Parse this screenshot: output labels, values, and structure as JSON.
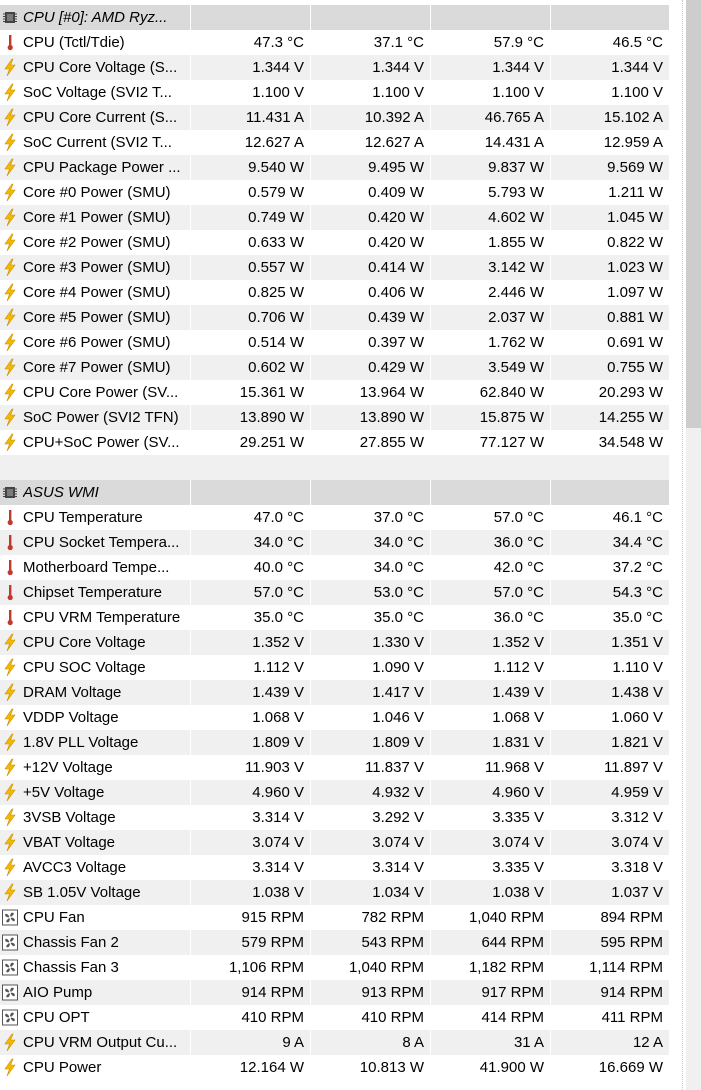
{
  "groups": [
    {
      "title": "CPU [#0]: AMD Ryz...",
      "rows": [
        {
          "icon": "thermometer-icon",
          "label": "CPU (Tctl/Tdie)",
          "v": [
            "47.3 °C",
            "37.1 °C",
            "57.9 °C",
            "46.5 °C"
          ]
        },
        {
          "icon": "lightning-icon",
          "label": "CPU Core Voltage (S...",
          "v": [
            "1.344 V",
            "1.344 V",
            "1.344 V",
            "1.344 V"
          ]
        },
        {
          "icon": "lightning-icon",
          "label": "SoC Voltage (SVI2 T...",
          "v": [
            "1.100 V",
            "1.100 V",
            "1.100 V",
            "1.100 V"
          ]
        },
        {
          "icon": "lightning-icon",
          "label": "CPU Core Current (S...",
          "v": [
            "11.431 A",
            "10.392 A",
            "46.765 A",
            "15.102 A"
          ]
        },
        {
          "icon": "lightning-icon",
          "label": "SoC Current (SVI2 T...",
          "v": [
            "12.627 A",
            "12.627 A",
            "14.431 A",
            "12.959 A"
          ]
        },
        {
          "icon": "lightning-icon",
          "label": "CPU Package Power ...",
          "v": [
            "9.540 W",
            "9.495 W",
            "9.837 W",
            "9.569 W"
          ]
        },
        {
          "icon": "lightning-icon",
          "label": "Core #0 Power (SMU)",
          "v": [
            "0.579 W",
            "0.409 W",
            "5.793 W",
            "1.211 W"
          ]
        },
        {
          "icon": "lightning-icon",
          "label": "Core #1 Power (SMU)",
          "v": [
            "0.749 W",
            "0.420 W",
            "4.602 W",
            "1.045 W"
          ]
        },
        {
          "icon": "lightning-icon",
          "label": "Core #2 Power (SMU)",
          "v": [
            "0.633 W",
            "0.420 W",
            "1.855 W",
            "0.822 W"
          ]
        },
        {
          "icon": "lightning-icon",
          "label": "Core #3 Power (SMU)",
          "v": [
            "0.557 W",
            "0.414 W",
            "3.142 W",
            "1.023 W"
          ]
        },
        {
          "icon": "lightning-icon",
          "label": "Core #4 Power (SMU)",
          "v": [
            "0.825 W",
            "0.406 W",
            "2.446 W",
            "1.097 W"
          ]
        },
        {
          "icon": "lightning-icon",
          "label": "Core #5 Power (SMU)",
          "v": [
            "0.706 W",
            "0.439 W",
            "2.037 W",
            "0.881 W"
          ]
        },
        {
          "icon": "lightning-icon",
          "label": "Core #6 Power (SMU)",
          "v": [
            "0.514 W",
            "0.397 W",
            "1.762 W",
            "0.691 W"
          ]
        },
        {
          "icon": "lightning-icon",
          "label": "Core #7 Power (SMU)",
          "v": [
            "0.602 W",
            "0.429 W",
            "3.549 W",
            "0.755 W"
          ]
        },
        {
          "icon": "lightning-icon",
          "label": "CPU Core Power (SV...",
          "v": [
            "15.361 W",
            "13.964 W",
            "62.840 W",
            "20.293 W"
          ]
        },
        {
          "icon": "lightning-icon",
          "label": "SoC Power (SVI2 TFN)",
          "v": [
            "13.890 W",
            "13.890 W",
            "15.875 W",
            "14.255 W"
          ]
        },
        {
          "icon": "lightning-icon",
          "label": "CPU+SoC Power (SV...",
          "v": [
            "29.251 W",
            "27.855 W",
            "77.127 W",
            "34.548 W"
          ]
        }
      ]
    },
    {
      "title": "ASUS WMI",
      "rows": [
        {
          "icon": "thermometer-icon",
          "label": "CPU Temperature",
          "v": [
            "47.0 °C",
            "37.0 °C",
            "57.0 °C",
            "46.1 °C"
          ]
        },
        {
          "icon": "thermometer-icon",
          "label": "CPU Socket Tempera...",
          "v": [
            "34.0 °C",
            "34.0 °C",
            "36.0 °C",
            "34.4 °C"
          ]
        },
        {
          "icon": "thermometer-icon",
          "label": "Motherboard Tempe...",
          "v": [
            "40.0 °C",
            "34.0 °C",
            "42.0 °C",
            "37.2 °C"
          ]
        },
        {
          "icon": "thermometer-icon",
          "label": "Chipset Temperature",
          "v": [
            "57.0 °C",
            "53.0 °C",
            "57.0 °C",
            "54.3 °C"
          ]
        },
        {
          "icon": "thermometer-icon",
          "label": "CPU VRM Temperature",
          "v": [
            "35.0 °C",
            "35.0 °C",
            "36.0 °C",
            "35.0 °C"
          ]
        },
        {
          "icon": "lightning-icon",
          "label": "CPU Core Voltage",
          "v": [
            "1.352 V",
            "1.330 V",
            "1.352 V",
            "1.351 V"
          ]
        },
        {
          "icon": "lightning-icon",
          "label": "CPU SOC Voltage",
          "v": [
            "1.112 V",
            "1.090 V",
            "1.112 V",
            "1.110 V"
          ]
        },
        {
          "icon": "lightning-icon",
          "label": "DRAM Voltage",
          "v": [
            "1.439 V",
            "1.417 V",
            "1.439 V",
            "1.438 V"
          ]
        },
        {
          "icon": "lightning-icon",
          "label": "VDDP Voltage",
          "v": [
            "1.068 V",
            "1.046 V",
            "1.068 V",
            "1.060 V"
          ]
        },
        {
          "icon": "lightning-icon",
          "label": "1.8V PLL Voltage",
          "v": [
            "1.809 V",
            "1.809 V",
            "1.831 V",
            "1.821 V"
          ]
        },
        {
          "icon": "lightning-icon",
          "label": "+12V Voltage",
          "v": [
            "11.903 V",
            "11.837 V",
            "11.968 V",
            "11.897 V"
          ]
        },
        {
          "icon": "lightning-icon",
          "label": "+5V Voltage",
          "v": [
            "4.960 V",
            "4.932 V",
            "4.960 V",
            "4.959 V"
          ]
        },
        {
          "icon": "lightning-icon",
          "label": "3VSB Voltage",
          "v": [
            "3.314 V",
            "3.292 V",
            "3.335 V",
            "3.312 V"
          ]
        },
        {
          "icon": "lightning-icon",
          "label": "VBAT Voltage",
          "v": [
            "3.074 V",
            "3.074 V",
            "3.074 V",
            "3.074 V"
          ]
        },
        {
          "icon": "lightning-icon",
          "label": "AVCC3 Voltage",
          "v": [
            "3.314 V",
            "3.314 V",
            "3.335 V",
            "3.318 V"
          ]
        },
        {
          "icon": "lightning-icon",
          "label": "SB 1.05V Voltage",
          "v": [
            "1.038 V",
            "1.034 V",
            "1.038 V",
            "1.037 V"
          ]
        },
        {
          "icon": "fan-icon",
          "label": "CPU Fan",
          "v": [
            "915 RPM",
            "782 RPM",
            "1,040 RPM",
            "894 RPM"
          ]
        },
        {
          "icon": "fan-icon",
          "label": "Chassis Fan 2",
          "v": [
            "579 RPM",
            "543 RPM",
            "644 RPM",
            "595 RPM"
          ]
        },
        {
          "icon": "fan-icon",
          "label": "Chassis Fan 3",
          "v": [
            "1,106 RPM",
            "1,040 RPM",
            "1,182 RPM",
            "1,114 RPM"
          ]
        },
        {
          "icon": "fan-icon",
          "label": "AIO Pump",
          "v": [
            "914 RPM",
            "913 RPM",
            "917 RPM",
            "914 RPM"
          ]
        },
        {
          "icon": "fan-icon",
          "label": "CPU OPT",
          "v": [
            "410 RPM",
            "410 RPM",
            "414 RPM",
            "411 RPM"
          ]
        },
        {
          "icon": "lightning-icon",
          "label": "CPU VRM Output Cu...",
          "v": [
            "9 A",
            "8 A",
            "31 A",
            "12 A"
          ]
        },
        {
          "icon": "lightning-icon",
          "label": "CPU Power",
          "v": [
            "12.164 W",
            "10.813 W",
            "41.900 W",
            "16.669 W"
          ]
        }
      ]
    }
  ],
  "colors": {
    "thermometer": "#c0392b",
    "lightning": "#f5b800",
    "fan": "#555555",
    "chip": "#444444",
    "header_bg": "#dadada",
    "alt_row_bg": "#f0f0f0"
  }
}
